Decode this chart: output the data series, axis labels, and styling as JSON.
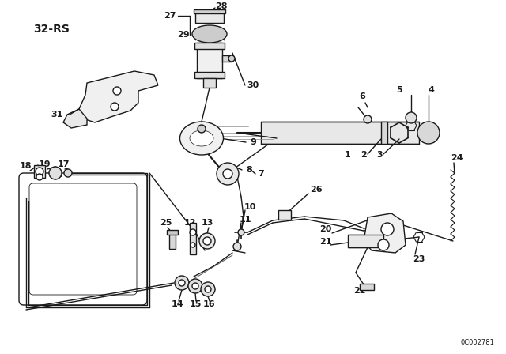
{
  "title": "32-RS",
  "watermark": "0C002781",
  "bg_color": "#ffffff",
  "line_color": "#1a1a1a",
  "lw": 1.0,
  "figsize": [
    6.4,
    4.48
  ],
  "dpi": 100
}
